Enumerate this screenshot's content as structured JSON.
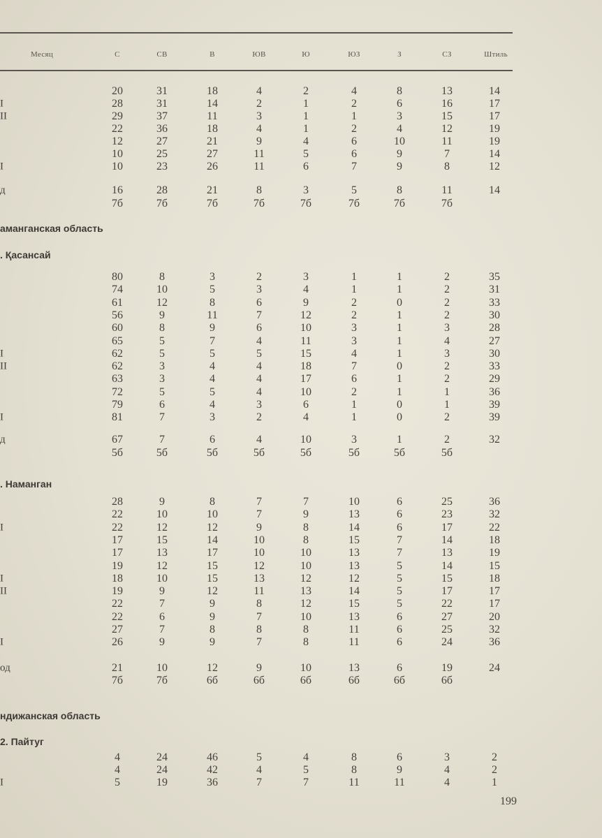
{
  "header": {
    "month_label": "Месяц",
    "columns": [
      "С",
      "СВ",
      "В",
      "ЮВ",
      "Ю",
      "ЮЗ",
      "З",
      "СЗ",
      "Штиль"
    ]
  },
  "blocks": [
    {
      "heading_region": "",
      "heading_station": "",
      "rows": [
        {
          "label": "",
          "values": [
            "20",
            "31",
            "18",
            "4",
            "2",
            "4",
            "8",
            "13",
            "14"
          ]
        },
        {
          "label": "I",
          "values": [
            "28",
            "31",
            "14",
            "2",
            "1",
            "2",
            "6",
            "16",
            "17"
          ]
        },
        {
          "label": "II",
          "values": [
            "29",
            "37",
            "11",
            "3",
            "1",
            "1",
            "3",
            "15",
            "17"
          ]
        },
        {
          "label": "",
          "values": [
            "22",
            "36",
            "18",
            "4",
            "1",
            "2",
            "4",
            "12",
            "19"
          ]
        },
        {
          "label": "",
          "values": [
            "12",
            "27",
            "21",
            "9",
            "4",
            "6",
            "10",
            "11",
            "19"
          ]
        },
        {
          "label": "",
          "values": [
            "10",
            "25",
            "27",
            "11",
            "5",
            "6",
            "9",
            "7",
            "14"
          ]
        },
        {
          "label": "I",
          "values": [
            "10",
            "23",
            "26",
            "11",
            "6",
            "7",
            "9",
            "8",
            "12"
          ]
        }
      ],
      "year": {
        "label": "д",
        "values": [
          "16",
          "28",
          "21",
          "8",
          "3",
          "5",
          "8",
          "11",
          "14"
        ]
      },
      "counts": [
        "7б",
        "7б",
        "7б",
        "7б",
        "7б",
        "7б",
        "7б",
        "7б"
      ]
    },
    {
      "heading_region": "аманганская область",
      "heading_station": ". Қасансай",
      "rows": [
        {
          "label": "",
          "values": [
            "80",
            "8",
            "3",
            "2",
            "3",
            "1",
            "1",
            "2",
            "35"
          ]
        },
        {
          "label": "",
          "values": [
            "74",
            "10",
            "5",
            "3",
            "4",
            "1",
            "1",
            "2",
            "31"
          ]
        },
        {
          "label": "",
          "values": [
            "61",
            "12",
            "8",
            "6",
            "9",
            "2",
            "0",
            "2",
            "33"
          ]
        },
        {
          "label": "",
          "values": [
            "56",
            "9",
            "11",
            "7",
            "12",
            "2",
            "1",
            "2",
            "30"
          ]
        },
        {
          "label": "",
          "values": [
            "60",
            "8",
            "9",
            "6",
            "10",
            "3",
            "1",
            "3",
            "28"
          ]
        },
        {
          "label": "",
          "values": [
            "65",
            "5",
            "7",
            "4",
            "11",
            "3",
            "1",
            "4",
            "27"
          ]
        },
        {
          "label": "I",
          "values": [
            "62",
            "5",
            "5",
            "5",
            "15",
            "4",
            "1",
            "3",
            "30"
          ]
        },
        {
          "label": "II",
          "values": [
            "62",
            "3",
            "4",
            "4",
            "18",
            "7",
            "0",
            "2",
            "33"
          ]
        },
        {
          "label": "",
          "values": [
            "63",
            "3",
            "4",
            "4",
            "17",
            "6",
            "1",
            "2",
            "29"
          ]
        },
        {
          "label": "",
          "values": [
            "72",
            "5",
            "5",
            "4",
            "10",
            "2",
            "1",
            "1",
            "36"
          ]
        },
        {
          "label": "",
          "values": [
            "79",
            "6",
            "4",
            "3",
            "6",
            "1",
            "0",
            "1",
            "39"
          ]
        },
        {
          "label": "I",
          "values": [
            "81",
            "7",
            "3",
            "2",
            "4",
            "1",
            "0",
            "2",
            "39"
          ]
        }
      ],
      "year": {
        "label": "д",
        "values": [
          "67",
          "7",
          "6",
          "4",
          "10",
          "3",
          "1",
          "2",
          "32"
        ]
      },
      "counts": [
        "5б",
        "5б",
        "5б",
        "5б",
        "5б",
        "5б",
        "5б",
        "5б"
      ]
    },
    {
      "heading_region": "",
      "heading_station": ". Наманган",
      "rows": [
        {
          "label": "",
          "values": [
            "28",
            "9",
            "8",
            "7",
            "7",
            "10",
            "6",
            "25",
            "36"
          ]
        },
        {
          "label": "",
          "values": [
            "22",
            "10",
            "10",
            "7",
            "9",
            "13",
            "6",
            "23",
            "32"
          ]
        },
        {
          "label": "I",
          "values": [
            "22",
            "12",
            "12",
            "9",
            "8",
            "14",
            "6",
            "17",
            "22"
          ]
        },
        {
          "label": "",
          "values": [
            "17",
            "15",
            "14",
            "10",
            "8",
            "15",
            "7",
            "14",
            "18"
          ]
        },
        {
          "label": "",
          "values": [
            "17",
            "13",
            "17",
            "10",
            "10",
            "13",
            "7",
            "13",
            "19"
          ]
        },
        {
          "label": "",
          "values": [
            "19",
            "12",
            "15",
            "12",
            "10",
            "13",
            "5",
            "14",
            "15"
          ]
        },
        {
          "label": "I",
          "values": [
            "18",
            "10",
            "15",
            "13",
            "12",
            "12",
            "5",
            "15",
            "18"
          ]
        },
        {
          "label": "II",
          "values": [
            "19",
            "9",
            "12",
            "11",
            "13",
            "14",
            "5",
            "17",
            "17"
          ]
        },
        {
          "label": "",
          "values": [
            "22",
            "7",
            "9",
            "8",
            "12",
            "15",
            "5",
            "22",
            "17"
          ]
        },
        {
          "label": "",
          "values": [
            "22",
            "6",
            "9",
            "7",
            "10",
            "13",
            "6",
            "27",
            "20"
          ]
        },
        {
          "label": "",
          "values": [
            "27",
            "7",
            "8",
            "8",
            "8",
            "11",
            "6",
            "25",
            "32"
          ]
        },
        {
          "label": "I",
          "values": [
            "26",
            "9",
            "9",
            "7",
            "8",
            "11",
            "6",
            "24",
            "36"
          ]
        }
      ],
      "year": {
        "label": "од",
        "values": [
          "21",
          "10",
          "12",
          "9",
          "10",
          "13",
          "6",
          "19",
          "24"
        ]
      },
      "counts": [
        "7б",
        "7б",
        "6б",
        "6б",
        "6б",
        "6б",
        "6б",
        "6б"
      ]
    },
    {
      "heading_region": "ндижанская область",
      "heading_station": "2. Пайтуг",
      "rows": [
        {
          "label": "",
          "values": [
            "4",
            "24",
            "46",
            "5",
            "4",
            "8",
            "6",
            "3",
            "2"
          ]
        },
        {
          "label": "",
          "values": [
            "4",
            "24",
            "42",
            "4",
            "5",
            "8",
            "9",
            "4",
            "2"
          ]
        },
        {
          "label": "I",
          "values": [
            "5",
            "19",
            "36",
            "7",
            "7",
            "11",
            "11",
            "4",
            "1"
          ]
        }
      ]
    }
  ],
  "page_number": "199"
}
